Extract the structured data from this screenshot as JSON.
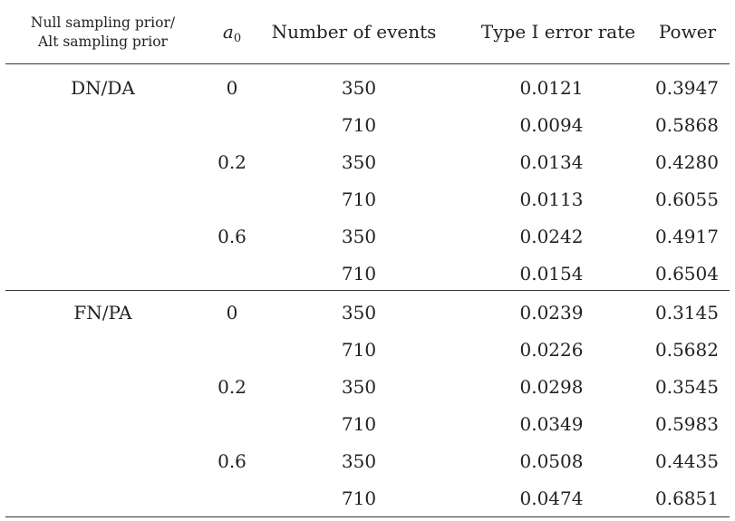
{
  "header": {
    "prior_line1": "Null sampling prior/",
    "prior_line2": "Alt sampling prior",
    "a0_symbol": "a",
    "a0_subscript": "0",
    "events": "Number of events",
    "type1": "Type I error rate",
    "power": "Power"
  },
  "rows": [
    {
      "prior": "DN/DA",
      "a0": "0",
      "events": "350",
      "type1": "0.0121",
      "power": "0.3947"
    },
    {
      "prior": "",
      "a0": "",
      "events": "710",
      "type1": "0.0094",
      "power": "0.5868"
    },
    {
      "prior": "",
      "a0": "0.2",
      "events": "350",
      "type1": "0.0134",
      "power": "0.4280"
    },
    {
      "prior": "",
      "a0": "",
      "events": "710",
      "type1": "0.0113",
      "power": "0.6055"
    },
    {
      "prior": "",
      "a0": "0.6",
      "events": "350",
      "type1": "0.0242",
      "power": "0.4917"
    },
    {
      "prior": "",
      "a0": "",
      "events": "710",
      "type1": "0.0154",
      "power": "0.6504"
    },
    {
      "prior": "FN/PA",
      "a0": "0",
      "events": "350",
      "type1": "0.0239",
      "power": "0.3145"
    },
    {
      "prior": "",
      "a0": "",
      "events": "710",
      "type1": "0.0226",
      "power": "0.5682"
    },
    {
      "prior": "",
      "a0": "0.2",
      "events": "350",
      "type1": "0.0298",
      "power": "0.3545"
    },
    {
      "prior": "",
      "a0": "",
      "events": "710",
      "type1": "0.0349",
      "power": "0.5983"
    },
    {
      "prior": "",
      "a0": "0.6",
      "events": "350",
      "type1": "0.0508",
      "power": "0.4435"
    },
    {
      "prior": "",
      "a0": "",
      "events": "710",
      "type1": "0.0474",
      "power": "0.6851"
    }
  ]
}
